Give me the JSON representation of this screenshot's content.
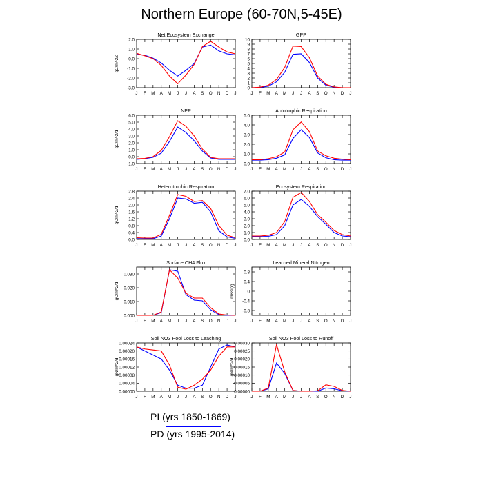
{
  "title": "Northern Europe (60-70N,5-45E)",
  "legend": [
    {
      "label": "PI (yrs 1850-1869)",
      "color": "#0000ff"
    },
    {
      "label": "PD (yrs 1995-2014)",
      "color": "#ff0000"
    }
  ],
  "colors": {
    "pi": "#0000ff",
    "pd": "#ff0000"
  },
  "chart_data": [
    {
      "type": "line",
      "title": "Net Ecosystem Exchange",
      "ylabel": "gC/m^2/d",
      "ylim": [
        -3.0,
        2.0
      ],
      "yticks": [
        2.0,
        1.0,
        0.0,
        -1.0,
        -2.0,
        -3.0
      ],
      "ytick_labels": [
        "2.0",
        "1.0",
        "0.0",
        "-1.0",
        "-2.0",
        "-3.0"
      ],
      "categories": [
        "J",
        "F",
        "M",
        "A",
        "M",
        "J",
        "J",
        "A",
        "S",
        "O",
        "N",
        "D",
        "J"
      ],
      "series": [
        {
          "values": [
            0.45,
            0.35,
            0.05,
            -0.45,
            -1.2,
            -1.8,
            -1.2,
            -0.5,
            1.2,
            1.4,
            0.8,
            0.5,
            0.4
          ]
        },
        {
          "values": [
            0.55,
            0.3,
            0.0,
            -0.7,
            -1.8,
            -2.6,
            -1.7,
            -0.6,
            1.25,
            1.8,
            1.2,
            0.7,
            0.5
          ]
        }
      ]
    },
    {
      "type": "line",
      "title": "GPP",
      "ylabel": "",
      "ylim": [
        0,
        10
      ],
      "yticks": [
        0,
        1,
        2,
        3,
        4,
        5,
        6,
        7,
        8,
        9,
        10
      ],
      "ytick_labels": [
        "0",
        "1",
        "2",
        "3",
        "4",
        "5",
        "6",
        "7",
        "8",
        "9",
        "10"
      ],
      "categories": [
        "J",
        "F",
        "M",
        "A",
        "M",
        "J",
        "J",
        "A",
        "S",
        "O",
        "N",
        "D",
        "J"
      ],
      "series": [
        {
          "values": [
            0.0,
            0.05,
            0.3,
            1.2,
            3.2,
            6.9,
            7.0,
            5.2,
            2.0,
            0.5,
            0.1,
            0.0,
            0.0
          ]
        },
        {
          "values": [
            0.0,
            0.1,
            0.5,
            1.7,
            4.2,
            8.6,
            8.5,
            6.2,
            2.4,
            0.7,
            0.15,
            0.0,
            0.0
          ]
        }
      ]
    },
    {
      "type": "line",
      "title": "NPP",
      "ylabel": "gC/m^2/d",
      "ylim": [
        -1.0,
        6.0
      ],
      "yticks": [
        6.0,
        5.0,
        4.0,
        3.0,
        2.0,
        1.0,
        0.0,
        -1.0
      ],
      "ytick_labels": [
        "6.0",
        "5.0",
        "4.0",
        "3.0",
        "2.0",
        "1.0",
        "0.0",
        "-1.0"
      ],
      "categories": [
        "J",
        "F",
        "M",
        "A",
        "M",
        "J",
        "J",
        "A",
        "S",
        "O",
        "N",
        "D",
        "J"
      ],
      "series": [
        {
          "values": [
            -0.4,
            -0.3,
            -0.1,
            0.5,
            2.2,
            4.3,
            3.5,
            2.3,
            0.8,
            -0.2,
            -0.4,
            -0.4,
            -0.4
          ]
        },
        {
          "values": [
            -0.3,
            -0.25,
            0.0,
            0.9,
            2.9,
            5.2,
            4.4,
            3.0,
            1.1,
            -0.1,
            -0.3,
            -0.3,
            -0.3
          ]
        }
      ]
    },
    {
      "type": "line",
      "title": "Autotrophic Respiration",
      "ylabel": "",
      "ylim": [
        0,
        5.0
      ],
      "yticks": [
        5.0,
        4.0,
        3.0,
        2.0,
        1.0,
        0.0
      ],
      "ytick_labels": [
        "5.0",
        "4.0",
        "3.0",
        "2.0",
        "1.0",
        "0.0"
      ],
      "categories": [
        "J",
        "F",
        "M",
        "A",
        "M",
        "J",
        "J",
        "A",
        "S",
        "O",
        "N",
        "D",
        "J"
      ],
      "series": [
        {
          "values": [
            0.35,
            0.35,
            0.4,
            0.55,
            0.9,
            2.6,
            3.5,
            2.7,
            1.1,
            0.6,
            0.4,
            0.35,
            0.35
          ]
        },
        {
          "values": [
            0.4,
            0.4,
            0.5,
            0.7,
            1.2,
            3.5,
            4.3,
            3.3,
            1.3,
            0.8,
            0.55,
            0.45,
            0.4
          ]
        }
      ]
    },
    {
      "type": "line",
      "title": "Heterotrophic Respiration",
      "ylabel": "gC/m^2/d",
      "ylim": [
        0,
        2.8
      ],
      "yticks": [
        2.8,
        2.4,
        2.0,
        1.6,
        1.2,
        0.8,
        0.4,
        0.0
      ],
      "ytick_labels": [
        "2.8",
        "2.4",
        "2.0",
        "1.6",
        "1.2",
        "0.8",
        "0.4",
        "0.0"
      ],
      "categories": [
        "J",
        "F",
        "M",
        "A",
        "M",
        "J",
        "J",
        "A",
        "S",
        "O",
        "N",
        "D",
        "J"
      ],
      "series": [
        {
          "values": [
            0.05,
            0.04,
            0.04,
            0.2,
            1.2,
            2.4,
            2.35,
            2.1,
            2.15,
            1.6,
            0.5,
            0.15,
            0.06
          ]
        },
        {
          "values": [
            0.1,
            0.08,
            0.08,
            0.3,
            1.4,
            2.6,
            2.5,
            2.2,
            2.25,
            1.8,
            0.8,
            0.25,
            0.1
          ]
        }
      ]
    },
    {
      "type": "line",
      "title": "Ecosystem Respiration",
      "ylabel": "",
      "ylim": [
        0,
        7.0
      ],
      "yticks": [
        7.0,
        6.0,
        5.0,
        4.0,
        3.0,
        2.0,
        1.0,
        0.0
      ],
      "ytick_labels": [
        "7.0",
        "6.0",
        "5.0",
        "4.0",
        "3.0",
        "2.0",
        "1.0",
        "0.0"
      ],
      "categories": [
        "J",
        "F",
        "M",
        "A",
        "M",
        "J",
        "J",
        "A",
        "S",
        "O",
        "N",
        "D",
        "J"
      ],
      "series": [
        {
          "values": [
            0.4,
            0.4,
            0.45,
            0.7,
            2.0,
            5.0,
            5.8,
            4.8,
            3.3,
            2.2,
            1.0,
            0.5,
            0.4
          ]
        },
        {
          "values": [
            0.5,
            0.5,
            0.6,
            1.0,
            2.6,
            6.1,
            6.8,
            5.5,
            3.6,
            2.5,
            1.3,
            0.7,
            0.5
          ]
        }
      ]
    },
    {
      "type": "line",
      "title": "Surface CH4 Flux",
      "ylabel": "gC/m^2/d",
      "ylim": [
        0,
        0.035
      ],
      "yticks": [
        0.03,
        0.02,
        0.01,
        0.0
      ],
      "ytick_labels": [
        "0.030",
        "0.020",
        "0.010",
        "0.000"
      ],
      "categories": [
        "J",
        "F",
        "M",
        "A",
        "M",
        "J",
        "J",
        "A",
        "S",
        "O",
        "N",
        "D",
        "J"
      ],
      "series": [
        {
          "values": [
            0.0,
            0.0,
            0.0,
            0.002,
            0.033,
            0.032,
            0.015,
            0.011,
            0.0105,
            0.004,
            0.0005,
            0.0,
            0.0
          ]
        },
        {
          "values": [
            0.0,
            0.0,
            0.0,
            0.0025,
            0.033,
            0.027,
            0.016,
            0.0125,
            0.0125,
            0.0055,
            0.001,
            0.0002,
            0.0
          ]
        }
      ]
    },
    {
      "type": "line",
      "title": "Leached Mineral Nitrogen",
      "ylabel": "missing",
      "ylim": [
        -1.0,
        1.0
      ],
      "yticks": [
        0.8,
        0.4,
        0.0,
        -0.4,
        -0.8
      ],
      "ytick_labels": [
        "0.8",
        "0.4",
        "0",
        "-0.4",
        "-0.8"
      ],
      "categories": [
        "J",
        "F",
        "M",
        "A",
        "M",
        "J",
        "J",
        "A",
        "S",
        "O",
        "N",
        "D",
        "J"
      ],
      "series": []
    },
    {
      "type": "line",
      "title": "Soil NO3 Pool Loss to Leaching",
      "ylabel": "gN/m^2/d",
      "ylim": [
        0,
        0.00024
      ],
      "yticks": [
        0.00024,
        0.0002,
        0.00016,
        0.00012,
        8e-05,
        4e-05,
        0.0
      ],
      "ytick_labels": [
        "0.00024",
        "0.00020",
        "0.00016",
        "0.00012",
        "0.00008",
        "0.00004",
        "0.00000"
      ],
      "categories": [
        "J",
        "F",
        "M",
        "A",
        "M",
        "J",
        "J",
        "A",
        "S",
        "O",
        "N",
        "D",
        "J"
      ],
      "series": [
        {
          "values": [
            0.00022,
            0.0002,
            0.00018,
            0.00016,
            0.000105,
            3e-05,
            1.5e-05,
            1.5e-05,
            3e-05,
            0.00012,
            0.00021,
            0.00023,
            0.00022
          ]
        },
        {
          "values": [
            0.00022,
            0.00021,
            0.000205,
            0.0002,
            0.00013,
            2e-05,
            1e-05,
            3e-05,
            6e-05,
            0.000105,
            0.000175,
            0.00022,
            0.00022
          ]
        }
      ]
    },
    {
      "type": "line",
      "title": "Soil NO3 Pool Loss to Runoff",
      "ylabel": "gN/m^2/d",
      "ylim": [
        0,
        0.0003
      ],
      "yticks": [
        0.0003,
        0.00025,
        0.0002,
        0.00015,
        0.0001,
        5e-05,
        0.0
      ],
      "ytick_labels": [
        "0.00030",
        "0.00025",
        "0.00020",
        "0.00015",
        "0.00010",
        "0.00005",
        "0.00000"
      ],
      "categories": [
        "J",
        "F",
        "M",
        "A",
        "M",
        "J",
        "J",
        "A",
        "S",
        "O",
        "N",
        "D",
        "J"
      ],
      "series": [
        {
          "values": [
            0.0,
            0.0,
            1.5e-05,
            0.000175,
            0.00011,
            5e-06,
            0.0,
            0.0,
            0.0,
            2e-05,
            1.5e-05,
            3e-06,
            0.0
          ]
        },
        {
          "values": [
            0.0,
            0.0,
            2e-05,
            0.00029,
            0.00012,
            5e-06,
            0.0,
            0.0,
            3e-06,
            4e-05,
            3e-05,
            5e-06,
            0.0
          ]
        }
      ]
    }
  ]
}
